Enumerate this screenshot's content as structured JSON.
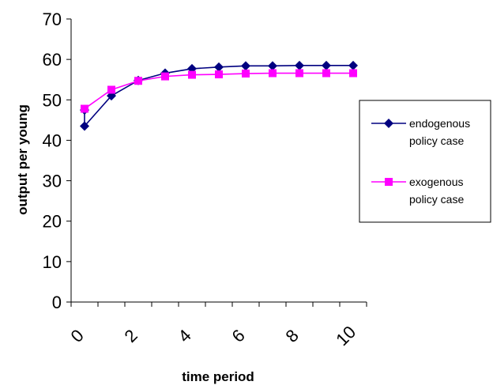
{
  "chart_data": {
    "type": "line",
    "xlabel": "time period",
    "ylabel": "output per young",
    "ylim": [
      0,
      70
    ],
    "xlim": [
      0,
      11
    ],
    "y_ticks": [
      "0",
      "10",
      "20",
      "30",
      "40",
      "50",
      "60",
      "70"
    ],
    "x_tick_labels": [
      "0",
      "2",
      "4",
      "6",
      "8",
      "10"
    ],
    "grid": false,
    "legend_position": "right",
    "series": [
      {
        "legend_lines": [
          "endogenous",
          "policy case"
        ],
        "marker": "diamond",
        "color": "#000080",
        "points": [
          [
            0,
            47.5
          ],
          [
            0,
            43.5
          ],
          [
            1,
            51
          ],
          [
            2,
            54.8
          ],
          [
            3,
            56.6
          ],
          [
            4,
            57.7
          ],
          [
            5,
            58.1
          ],
          [
            6,
            58.4
          ],
          [
            7,
            58.4
          ],
          [
            8,
            58.5
          ],
          [
            9,
            58.5
          ],
          [
            10,
            58.5
          ]
        ]
      },
      {
        "legend_lines": [
          "exogenous",
          "policy case"
        ],
        "marker": "square",
        "color": "#ff00ff",
        "points": [
          [
            0,
            47.8
          ],
          [
            1,
            52.5
          ],
          [
            2,
            54.7
          ],
          [
            3,
            55.8
          ],
          [
            4,
            56.2
          ],
          [
            5,
            56.3
          ],
          [
            6,
            56.5
          ],
          [
            7,
            56.6
          ],
          [
            8,
            56.6
          ],
          [
            9,
            56.6
          ],
          [
            10,
            56.6
          ]
        ]
      }
    ]
  }
}
